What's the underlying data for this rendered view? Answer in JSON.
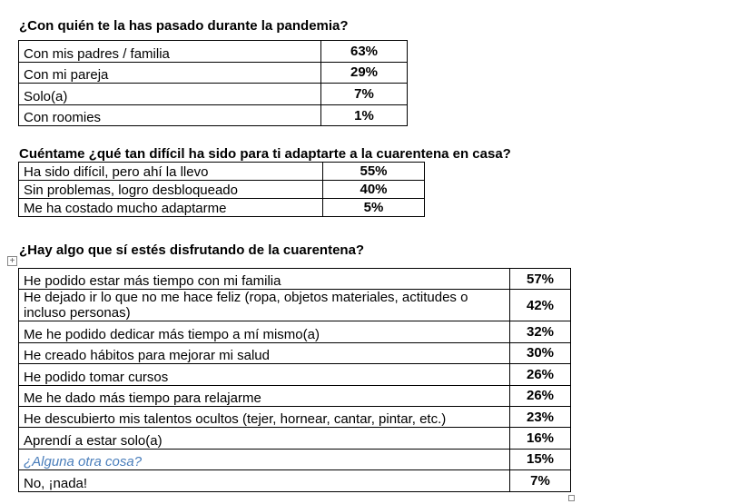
{
  "sections": [
    {
      "title": "¿Con quién te la has pasado durante la pandemia?",
      "rows": [
        {
          "label": "Con mis padres / familia",
          "value": "63%"
        },
        {
          "label": "Con mi pareja",
          "value": "29%"
        },
        {
          "label": "Solo(a)",
          "value": "7%"
        },
        {
          "label": "Con roomies",
          "value": "1%"
        }
      ]
    },
    {
      "title": "Cuéntame ¿qué tan difícil ha sido para ti adaptarte a la cuarentena en casa?",
      "rows": [
        {
          "label": "Ha sido difícil, pero ahí la llevo",
          "value": "55%"
        },
        {
          "label": "Sin problemas, logro desbloqueado",
          "value": "40%"
        },
        {
          "label": "Me ha costado mucho adaptarme",
          "value": "5%"
        }
      ]
    },
    {
      "title": "¿Hay algo que sí estés disfrutando de la cuarentena?",
      "rows": [
        {
          "label": "He podido estar más tiempo con mi familia",
          "value": "57%"
        },
        {
          "label": "He dejado ir lo que no me hace feliz (ropa, objetos materiales, actitudes o incluso personas)",
          "value": "42%"
        },
        {
          "label": "Me he podido dedicar más tiempo a mí mismo(a)",
          "value": "32%"
        },
        {
          "label": "He creado hábitos para mejorar mi salud",
          "value": "30%"
        },
        {
          "label": "He podido tomar cursos",
          "value": "26%"
        },
        {
          "label": "Me he dado más tiempo para relajarme",
          "value": "26%"
        },
        {
          "label": "He descubierto mis talentos ocultos (tejer, hornear, cantar, pintar, etc.)",
          "value": "23%"
        },
        {
          "label": "Aprendí a estar solo(a)",
          "value": "16%"
        },
        {
          "label": "¿Alguna otra cosa?",
          "value": "15%"
        },
        {
          "label": "No, ¡nada!",
          "value": "7%"
        }
      ]
    }
  ],
  "colors": {
    "link": "#4a7ebb"
  },
  "table_move_handle": "+"
}
